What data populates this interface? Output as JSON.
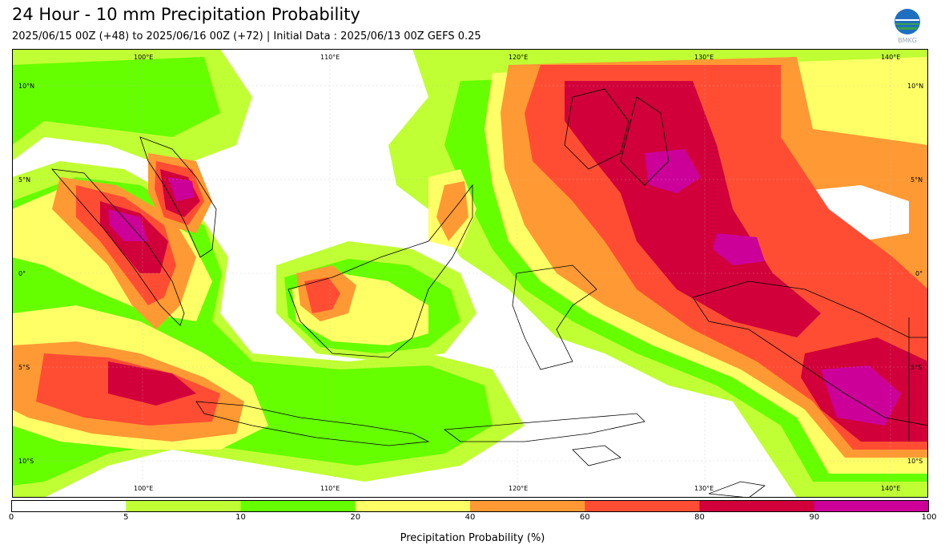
{
  "title": "24 Hour - 10 mm Precipitation Probability",
  "subtitle": "2025/06/15 00Z (+48) to 2025/06/16 00Z (+72) | Initial Data : 2025/06/13 00Z GEFS 0.25",
  "logo": {
    "icon": "bmkg-logo-icon",
    "text": "BMKG"
  },
  "map": {
    "lon_labels": [
      "100°E",
      "110°E",
      "120°E",
      "130°E",
      "140°E"
    ],
    "lat_labels": [
      "10°N",
      "5°N",
      "0°",
      "5°S",
      "10°S"
    ]
  },
  "colorbar": {
    "label": "Precipitation Probability (%)",
    "ticks": [
      "0",
      "5",
      "10",
      "20",
      "40",
      "60",
      "80",
      "90",
      "100"
    ],
    "colors": [
      "#ffffff",
      "#c0ff33",
      "#66ff00",
      "#ffff66",
      "#ff9933",
      "#ff4d33",
      "#d1003a",
      "#cc0099"
    ]
  }
}
